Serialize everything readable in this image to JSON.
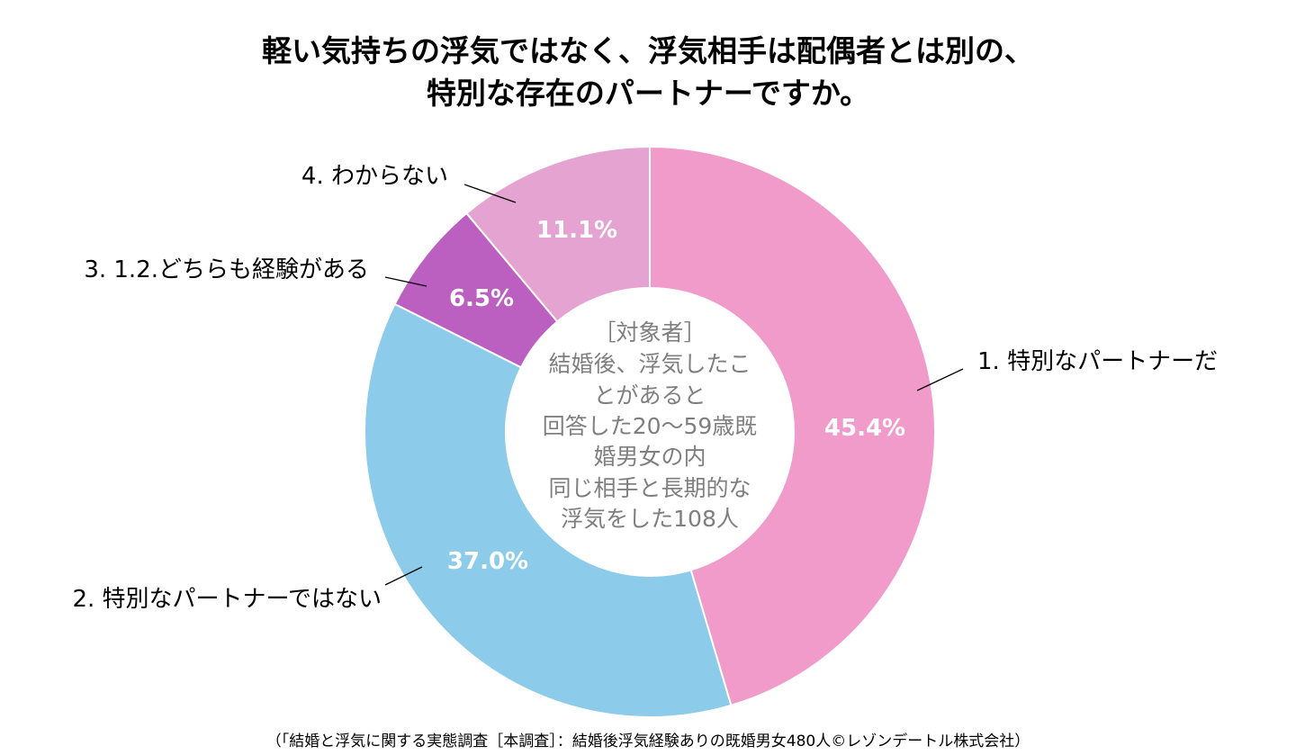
{
  "chart_data": {
    "type": "pie",
    "subtype": "donut",
    "title_lines": [
      "軽い気持ちの浮気ではなく、浮気相手は配偶者とは別の、",
      "特別な存在のパートナーですか。"
    ],
    "categories": [
      "1. 特別なパートナーだ",
      "2. 特別なパートナーではない",
      "3. 1.2.どちらも経験がある",
      "4. わからない"
    ],
    "values": [
      45.4,
      37.0,
      6.5,
      11.1
    ],
    "value_labels": [
      "45.4%",
      "37.0%",
      "6.5%",
      "11.1%"
    ],
    "colors": [
      "#f19bca",
      "#8ccbea",
      "#bb60c1",
      "#e5a3d2"
    ],
    "center_lines": [
      "［対象者］",
      "結婚後、浮気したこ",
      "とがあると",
      "回答した20～59歳既",
      "婚男女の内",
      "同じ相手と長期的な",
      "浮気をした108人"
    ],
    "source": "（「結婚と浮気に関する実態調査［本調査］：結婚後浮気経験ありの既婚男女480人©レゾンデートル株式会社）"
  }
}
